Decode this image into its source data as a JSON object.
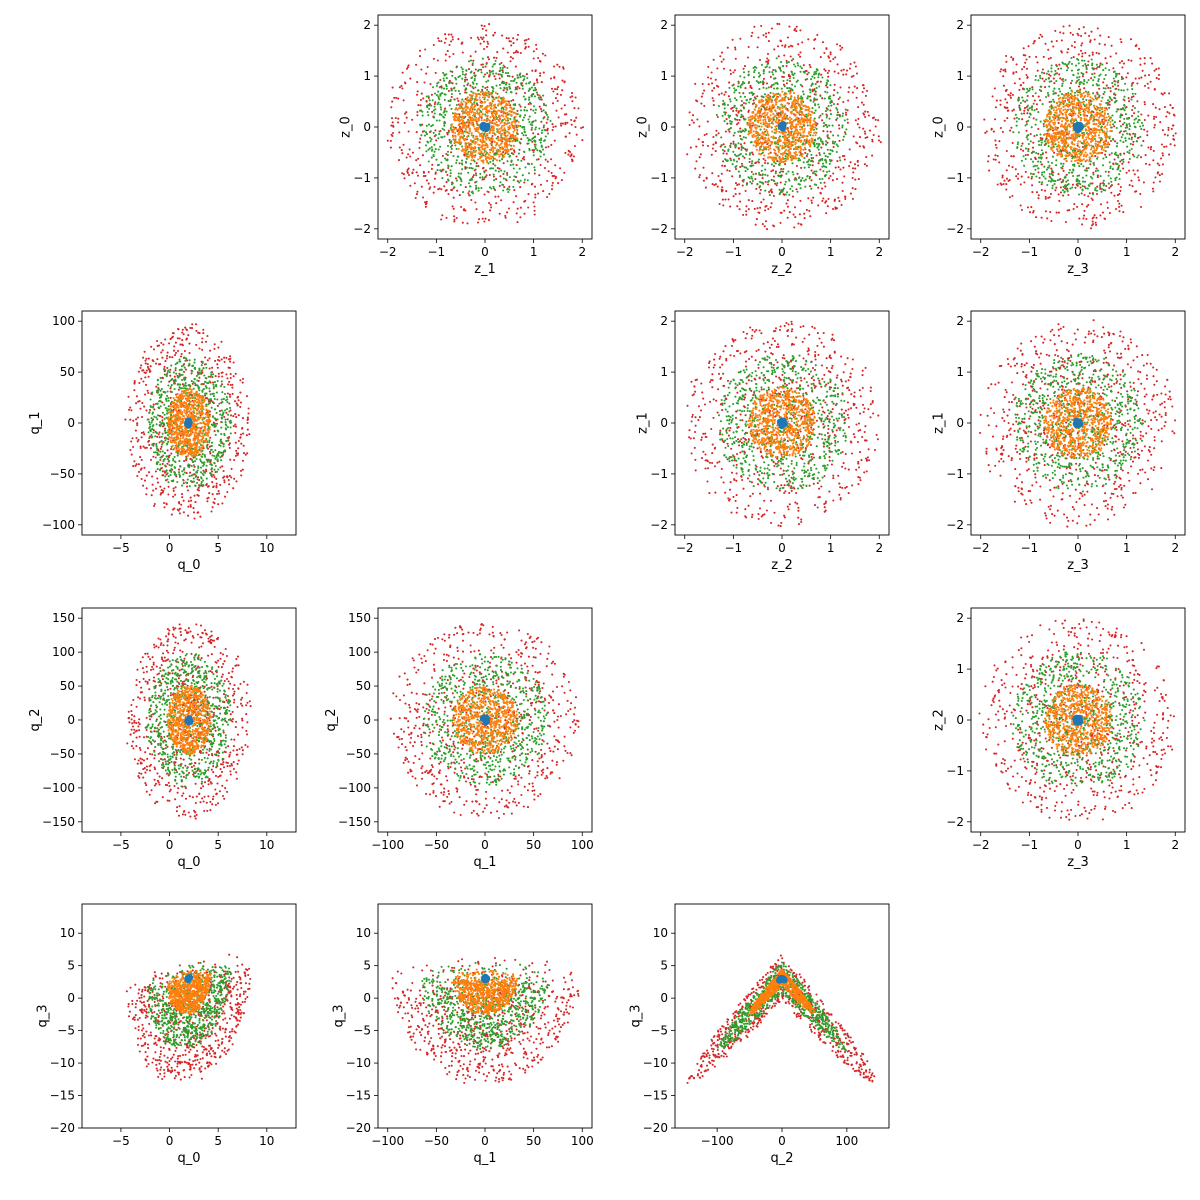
{
  "colors": {
    "ring_inner": "#1f77b4",
    "ring_1": "#ff7f0e",
    "ring_2": "#2ca02c",
    "ring_3": "#d62728"
  },
  "chart_data": [
    {
      "type": "scatter",
      "row": 0,
      "col": 1,
      "kind": "z",
      "xdim": 1,
      "ydim": 0,
      "xlabel": "z_1",
      "ylabel": "z_0",
      "xlim": [
        -2.2,
        2.2
      ],
      "ylim": [
        -2.2,
        2.2
      ],
      "xticks": [
        -2,
        -1,
        0,
        1,
        2
      ],
      "yticks": [
        -2,
        -1,
        0,
        1,
        2
      ],
      "series": [
        {
          "radius": 0.06,
          "color": "#1f77b4",
          "n": 12
        },
        {
          "radius": 0.7,
          "color": "#ff7f0e",
          "n": 700
        },
        {
          "radius": 1.35,
          "color": "#2ca02c",
          "n": 700
        },
        {
          "radius": 2.0,
          "color": "#d62728",
          "n": 700
        }
      ]
    },
    {
      "type": "scatter",
      "row": 0,
      "col": 2,
      "kind": "z",
      "xdim": 2,
      "ydim": 0,
      "xlabel": "z_2",
      "ylabel": "z_0",
      "xlim": [
        -2.2,
        2.2
      ],
      "ylim": [
        -2.2,
        2.2
      ],
      "xticks": [
        -2,
        -1,
        0,
        1,
        2
      ],
      "yticks": [
        -2,
        -1,
        0,
        1,
        2
      ],
      "series": [
        {
          "radius": 0.06,
          "color": "#1f77b4",
          "n": 12
        },
        {
          "radius": 0.7,
          "color": "#ff7f0e",
          "n": 700
        },
        {
          "radius": 1.35,
          "color": "#2ca02c",
          "n": 700
        },
        {
          "radius": 2.0,
          "color": "#d62728",
          "n": 700
        }
      ]
    },
    {
      "type": "scatter",
      "row": 0,
      "col": 3,
      "kind": "z",
      "xdim": 3,
      "ydim": 0,
      "xlabel": "z_3",
      "ylabel": "z_0",
      "xlim": [
        -2.2,
        2.2
      ],
      "ylim": [
        -2.2,
        2.2
      ],
      "xticks": [
        -2,
        -1,
        0,
        1,
        2
      ],
      "yticks": [
        -2,
        -1,
        0,
        1,
        2
      ],
      "series": [
        {
          "radius": 0.06,
          "color": "#1f77b4",
          "n": 12
        },
        {
          "radius": 0.7,
          "color": "#ff7f0e",
          "n": 700
        },
        {
          "radius": 1.35,
          "color": "#2ca02c",
          "n": 700
        },
        {
          "radius": 2.0,
          "color": "#d62728",
          "n": 700
        }
      ]
    },
    {
      "type": "scatter",
      "row": 1,
      "col": 0,
      "kind": "q",
      "xdim": 0,
      "ydim": 1,
      "xlabel": "q_0",
      "ylabel": "q_1",
      "xlim": [
        -9,
        13
      ],
      "ylim": [
        -110,
        110
      ],
      "xticks": [
        -5,
        0,
        5,
        10
      ],
      "yticks": [
        -100,
        -50,
        0,
        50,
        100
      ],
      "series": [
        {
          "radius": 0.06,
          "color": "#1f77b4",
          "n": 12
        },
        {
          "radius": 0.7,
          "color": "#ff7f0e",
          "n": 700
        },
        {
          "radius": 1.35,
          "color": "#2ca02c",
          "n": 700
        },
        {
          "radius": 2.0,
          "color": "#d62728",
          "n": 700
        }
      ]
    },
    {
      "type": "scatter",
      "row": 1,
      "col": 2,
      "kind": "z",
      "xdim": 2,
      "ydim": 1,
      "xlabel": "z_2",
      "ylabel": "z_1",
      "xlim": [
        -2.2,
        2.2
      ],
      "ylim": [
        -2.2,
        2.2
      ],
      "xticks": [
        -2,
        -1,
        0,
        1,
        2
      ],
      "yticks": [
        -2,
        -1,
        0,
        1,
        2
      ],
      "series": [
        {
          "radius": 0.06,
          "color": "#1f77b4",
          "n": 12
        },
        {
          "radius": 0.7,
          "color": "#ff7f0e",
          "n": 700
        },
        {
          "radius": 1.35,
          "color": "#2ca02c",
          "n": 700
        },
        {
          "radius": 2.0,
          "color": "#d62728",
          "n": 700
        }
      ]
    },
    {
      "type": "scatter",
      "row": 1,
      "col": 3,
      "kind": "z",
      "xdim": 3,
      "ydim": 1,
      "xlabel": "z_3",
      "ylabel": "z_1",
      "xlim": [
        -2.2,
        2.2
      ],
      "ylim": [
        -2.2,
        2.2
      ],
      "xticks": [
        -2,
        -1,
        0,
        1,
        2
      ],
      "yticks": [
        -2,
        -1,
        0,
        1,
        2
      ],
      "series": [
        {
          "radius": 0.06,
          "color": "#1f77b4",
          "n": 12
        },
        {
          "radius": 0.7,
          "color": "#ff7f0e",
          "n": 700
        },
        {
          "radius": 1.35,
          "color": "#2ca02c",
          "n": 700
        },
        {
          "radius": 2.0,
          "color": "#d62728",
          "n": 700
        }
      ]
    },
    {
      "type": "scatter",
      "row": 2,
      "col": 0,
      "kind": "q",
      "xdim": 0,
      "ydim": 2,
      "xlabel": "q_0",
      "ylabel": "q_2",
      "xlim": [
        -9,
        13
      ],
      "ylim": [
        -165,
        165
      ],
      "xticks": [
        -5,
        0,
        5,
        10
      ],
      "yticks": [
        -150,
        -100,
        -50,
        0,
        50,
        100,
        150
      ],
      "series": [
        {
          "radius": 0.06,
          "color": "#1f77b4",
          "n": 12
        },
        {
          "radius": 0.7,
          "color": "#ff7f0e",
          "n": 700
        },
        {
          "radius": 1.35,
          "color": "#2ca02c",
          "n": 700
        },
        {
          "radius": 2.0,
          "color": "#d62728",
          "n": 700
        }
      ]
    },
    {
      "type": "scatter",
      "row": 2,
      "col": 1,
      "kind": "q",
      "xdim": 1,
      "ydim": 2,
      "xlabel": "q_1",
      "ylabel": "q_2",
      "xlim": [
        -110,
        110
      ],
      "ylim": [
        -165,
        165
      ],
      "xticks": [
        -100,
        -50,
        0,
        50,
        100
      ],
      "yticks": [
        -150,
        -100,
        -50,
        0,
        50,
        100,
        150
      ],
      "series": [
        {
          "radius": 0.06,
          "color": "#1f77b4",
          "n": 12
        },
        {
          "radius": 0.7,
          "color": "#ff7f0e",
          "n": 700
        },
        {
          "radius": 1.35,
          "color": "#2ca02c",
          "n": 700
        },
        {
          "radius": 2.0,
          "color": "#d62728",
          "n": 700
        }
      ]
    },
    {
      "type": "scatter",
      "row": 2,
      "col": 3,
      "kind": "z",
      "xdim": 3,
      "ydim": 2,
      "xlabel": "z_3",
      "ylabel": "z_2",
      "xlim": [
        -2.2,
        2.2
      ],
      "ylim": [
        -2.2,
        2.2
      ],
      "xticks": [
        -2,
        -1,
        0,
        1,
        2
      ],
      "yticks": [
        -2,
        -1,
        0,
        1,
        2
      ],
      "series": [
        {
          "radius": 0.06,
          "color": "#1f77b4",
          "n": 12
        },
        {
          "radius": 0.7,
          "color": "#ff7f0e",
          "n": 700
        },
        {
          "radius": 1.35,
          "color": "#2ca02c",
          "n": 700
        },
        {
          "radius": 2.0,
          "color": "#d62728",
          "n": 700
        }
      ]
    },
    {
      "type": "scatter",
      "row": 3,
      "col": 0,
      "kind": "q",
      "xdim": 0,
      "ydim": 3,
      "xlabel": "q_0",
      "ylabel": "q_3",
      "xlim": [
        -9,
        13
      ],
      "ylim": [
        -20,
        14.5
      ],
      "xticks": [
        -5,
        0,
        5,
        10
      ],
      "yticks": [
        -20,
        -15,
        -10,
        -5,
        0,
        5,
        10
      ],
      "series": [
        {
          "radius": 0.06,
          "color": "#1f77b4",
          "n": 12
        },
        {
          "radius": 0.7,
          "color": "#ff7f0e",
          "n": 700
        },
        {
          "radius": 1.35,
          "color": "#2ca02c",
          "n": 700
        },
        {
          "radius": 2.0,
          "color": "#d62728",
          "n": 700
        }
      ]
    },
    {
      "type": "scatter",
      "row": 3,
      "col": 1,
      "kind": "q",
      "xdim": 1,
      "ydim": 3,
      "xlabel": "q_1",
      "ylabel": "q_3",
      "xlim": [
        -110,
        110
      ],
      "ylim": [
        -20,
        14.5
      ],
      "xticks": [
        -100,
        -50,
        0,
        50,
        100
      ],
      "yticks": [
        -20,
        -15,
        -10,
        -5,
        0,
        5,
        10
      ],
      "series": [
        {
          "radius": 0.06,
          "color": "#1f77b4",
          "n": 12
        },
        {
          "radius": 0.7,
          "color": "#ff7f0e",
          "n": 700
        },
        {
          "radius": 1.35,
          "color": "#2ca02c",
          "n": 700
        },
        {
          "radius": 2.0,
          "color": "#d62728",
          "n": 700
        }
      ]
    },
    {
      "type": "scatter",
      "row": 3,
      "col": 2,
      "kind": "q",
      "xdim": 2,
      "ydim": 3,
      "xlabel": "q_2",
      "ylabel": "q_3",
      "xlim": [
        -165,
        165
      ],
      "ylim": [
        -20,
        14.5
      ],
      "xticks": [
        -100,
        0,
        100
      ],
      "yticks": [
        -20,
        -15,
        -10,
        -5,
        0,
        5,
        10
      ],
      "series": [
        {
          "radius": 0.06,
          "color": "#1f77b4",
          "n": 12
        },
        {
          "radius": 0.7,
          "color": "#ff7f0e",
          "n": 700
        },
        {
          "radius": 1.35,
          "color": "#2ca02c",
          "n": 700
        },
        {
          "radius": 2.0,
          "color": "#d62728",
          "n": 700
        }
      ]
    }
  ]
}
